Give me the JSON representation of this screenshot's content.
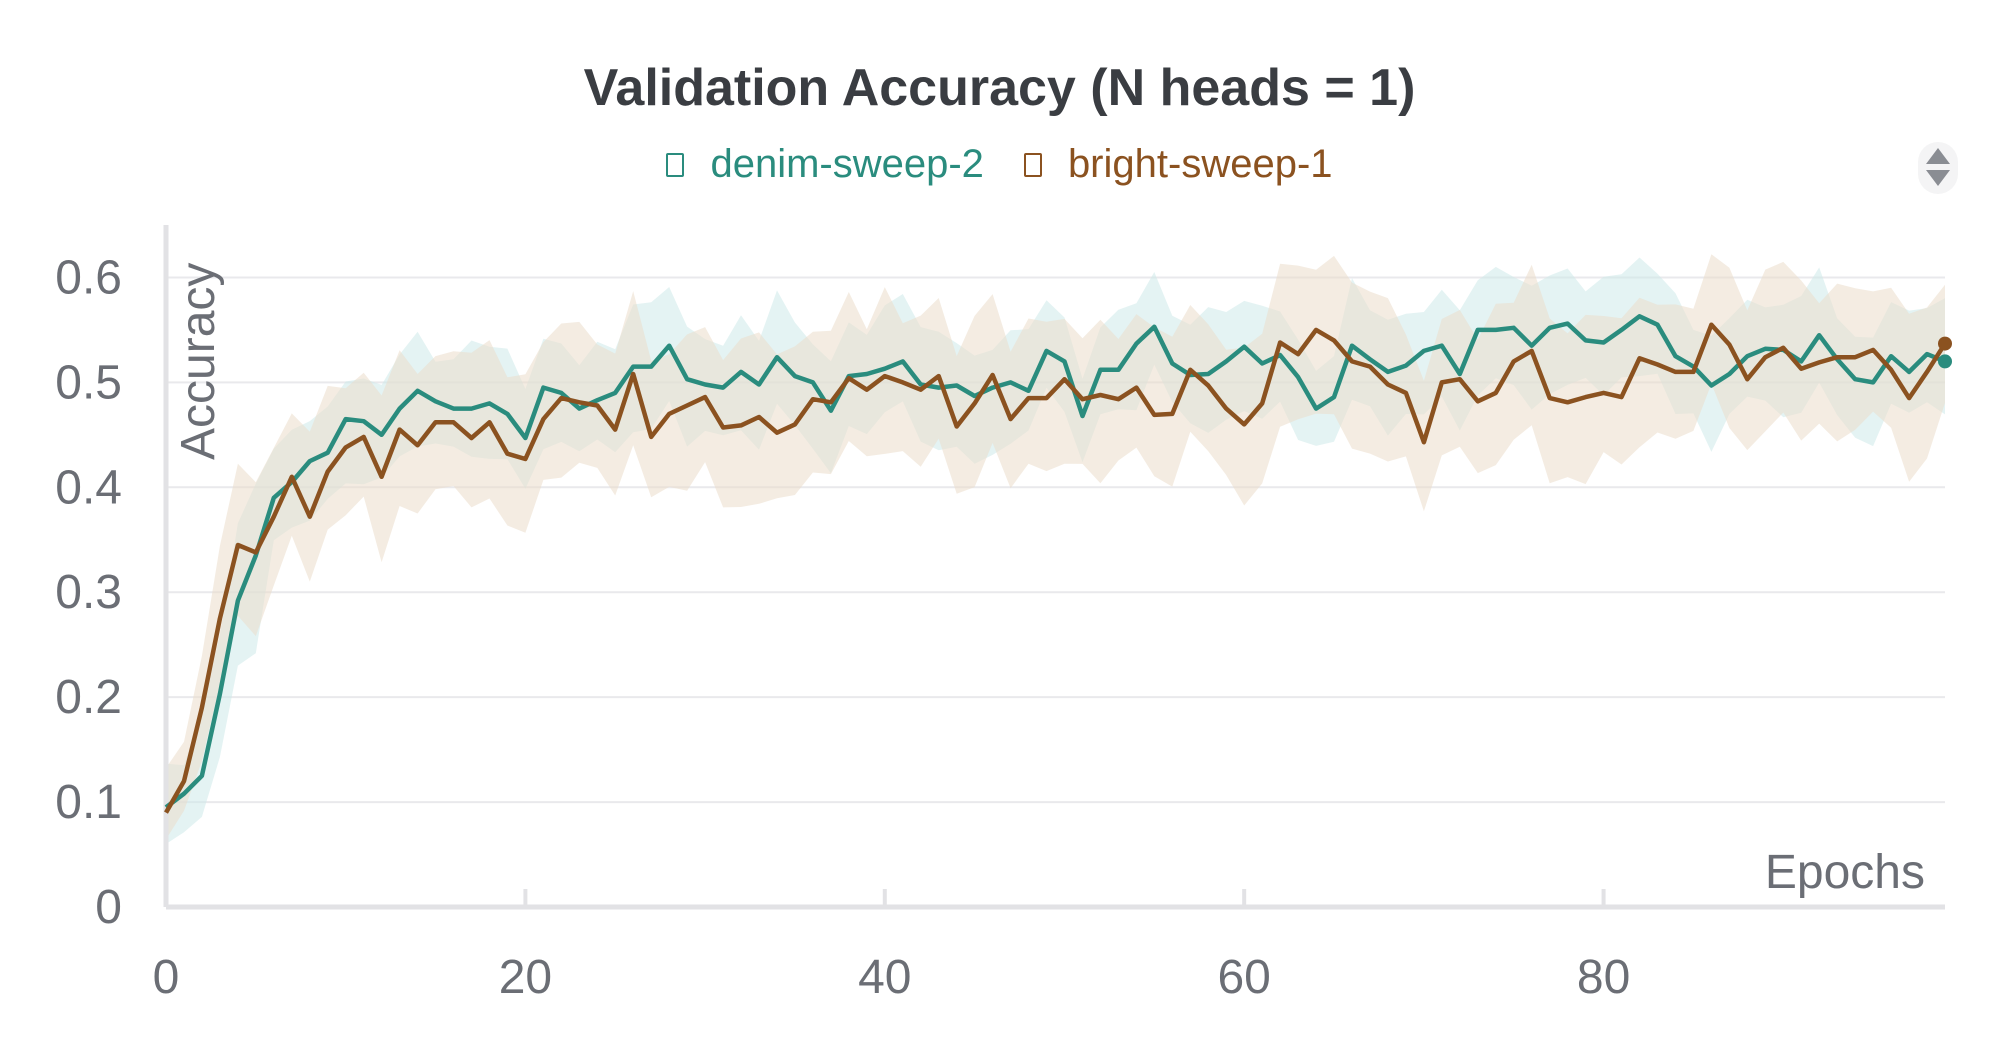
{
  "chart_data": {
    "type": "line",
    "title": "Validation Accuracy (N heads = 1)",
    "xlabel": "Epochs",
    "ylabel": "Accuracy",
    "xlim": [
      0,
      99
    ],
    "ylim": [
      0,
      0.65
    ],
    "xticks": [
      0,
      20,
      40,
      60,
      80
    ],
    "yticks": [
      0,
      0.1,
      0.2,
      0.3,
      0.4,
      0.5,
      0.6
    ],
    "xtick_labels": [
      "0",
      "20",
      "40",
      "60",
      "80"
    ],
    "ytick_labels": [
      "0",
      "0.1",
      "0.2",
      "0.3",
      "0.4",
      "0.5",
      "0.6"
    ],
    "grid": "horizontal",
    "legend_position": "top-center",
    "colors": {
      "denim": "#2a8c7e",
      "bright": "#8b5220",
      "denim_band": "#cde9ea",
      "bright_band": "#ebdccb",
      "grid": "#e9e9ec",
      "axis": "#e2e2e5"
    },
    "series": [
      {
        "name": "denim-sweep-2",
        "color": "#2a8c7e",
        "band_color": "#cde9ea",
        "x": [
          0,
          1,
          2,
          3,
          4,
          5,
          6,
          7,
          8,
          9,
          10,
          11,
          12,
          13,
          14,
          15,
          16,
          17,
          18,
          19,
          20,
          21,
          22,
          23,
          24,
          25,
          26,
          27,
          28,
          29,
          30,
          31,
          32,
          33,
          34,
          35,
          36,
          37,
          38,
          39,
          40,
          41,
          42,
          43,
          44,
          45,
          46,
          47,
          48,
          49,
          50,
          51,
          52,
          53,
          54,
          55,
          56,
          57,
          58,
          59,
          60,
          61,
          62,
          63,
          64,
          65,
          66,
          67,
          68,
          69,
          70,
          71,
          72,
          73,
          74,
          75,
          76,
          77,
          78,
          79,
          80,
          81,
          82,
          83,
          84,
          85,
          86,
          87,
          88,
          89,
          90,
          91,
          92,
          93,
          94,
          95,
          96,
          97,
          98,
          99
        ],
        "y": [
          0.095,
          0.108,
          0.125,
          0.203,
          0.292,
          0.335,
          0.39,
          0.405,
          0.425,
          0.433,
          0.465,
          0.463,
          0.45,
          0.475,
          0.492,
          0.482,
          0.475,
          0.475,
          0.48,
          0.47,
          0.447,
          0.495,
          0.49,
          0.475,
          0.483,
          0.49,
          0.515,
          0.515,
          0.535,
          0.503,
          0.498,
          0.495,
          0.51,
          0.498,
          0.524,
          0.506,
          0.5,
          0.473,
          0.506,
          0.508,
          0.513,
          0.52,
          0.498,
          0.495,
          0.497,
          0.487,
          0.495,
          0.5,
          0.492,
          0.53,
          0.52,
          0.468,
          0.512,
          0.512,
          0.537,
          0.553,
          0.518,
          0.507,
          0.508,
          0.52,
          0.534,
          0.518,
          0.526,
          0.505,
          0.475,
          0.486,
          0.535,
          0.522,
          0.51,
          0.516,
          0.53,
          0.535,
          0.508,
          0.55,
          0.55,
          0.552,
          0.535,
          0.552,
          0.556,
          0.54,
          0.538,
          0.55,
          0.563,
          0.555,
          0.525,
          0.515,
          0.497,
          0.508,
          0.525,
          0.532,
          0.531,
          0.52,
          0.545,
          0.522,
          0.503,
          0.5,
          0.525,
          0.51,
          0.527,
          0.52
        ]
      },
      {
        "name": "bright-sweep-1",
        "color": "#8b5220",
        "band_color": "#ebdccb",
        "x": [
          0,
          1,
          2,
          3,
          4,
          5,
          6,
          7,
          8,
          9,
          10,
          11,
          12,
          13,
          14,
          15,
          16,
          17,
          18,
          19,
          20,
          21,
          22,
          23,
          24,
          25,
          26,
          27,
          28,
          29,
          30,
          31,
          32,
          33,
          34,
          35,
          36,
          37,
          38,
          39,
          40,
          41,
          42,
          43,
          44,
          45,
          46,
          47,
          48,
          49,
          50,
          51,
          52,
          53,
          54,
          55,
          56,
          57,
          58,
          59,
          60,
          61,
          62,
          63,
          64,
          65,
          66,
          67,
          68,
          69,
          70,
          71,
          72,
          73,
          74,
          75,
          76,
          77,
          78,
          79,
          80,
          81,
          82,
          83,
          84,
          85,
          86,
          87,
          88,
          89,
          90,
          91,
          92,
          93,
          94,
          95,
          96,
          97,
          98,
          99
        ],
        "y": [
          0.09,
          0.12,
          0.19,
          0.275,
          0.345,
          0.338,
          0.372,
          0.41,
          0.372,
          0.415,
          0.438,
          0.448,
          0.41,
          0.455,
          0.44,
          0.462,
          0.462,
          0.447,
          0.462,
          0.432,
          0.427,
          0.465,
          0.485,
          0.481,
          0.478,
          0.455,
          0.508,
          0.448,
          0.47,
          0.478,
          0.486,
          0.457,
          0.459,
          0.467,
          0.452,
          0.46,
          0.484,
          0.481,
          0.504,
          0.493,
          0.506,
          0.5,
          0.493,
          0.506,
          0.458,
          0.48,
          0.507,
          0.465,
          0.485,
          0.485,
          0.503,
          0.484,
          0.488,
          0.484,
          0.495,
          0.469,
          0.47,
          0.512,
          0.497,
          0.475,
          0.46,
          0.48,
          0.538,
          0.527,
          0.55,
          0.54,
          0.52,
          0.515,
          0.498,
          0.49,
          0.443,
          0.5,
          0.503,
          0.482,
          0.49,
          0.52,
          0.53,
          0.485,
          0.481,
          0.486,
          0.49,
          0.486,
          0.523,
          0.517,
          0.51,
          0.51,
          0.555,
          0.536,
          0.503,
          0.524,
          0.533,
          0.513,
          0.519,
          0.524,
          0.524,
          0.531,
          0.512,
          0.485,
          0.51,
          0.537
        ]
      }
    ]
  }
}
